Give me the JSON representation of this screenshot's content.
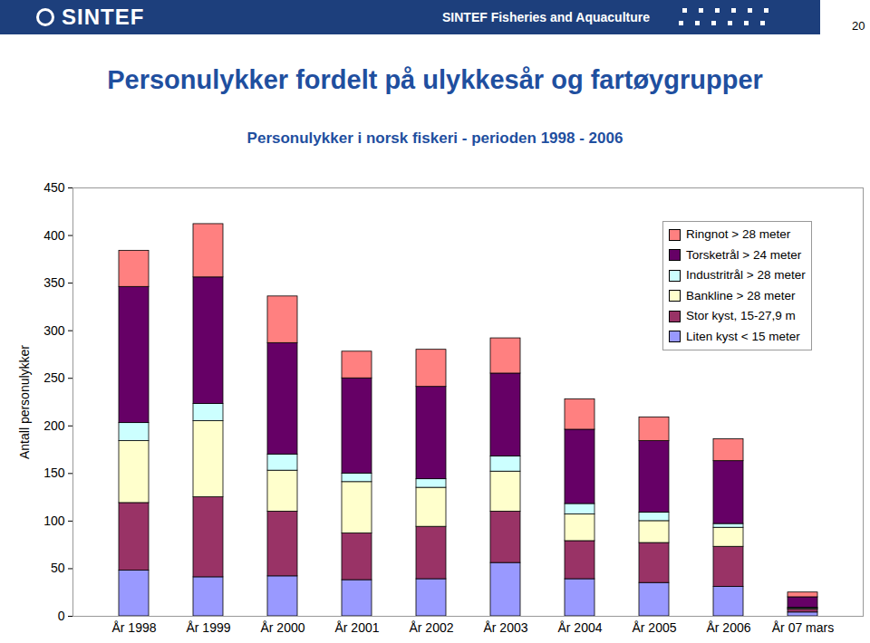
{
  "page": {
    "logo": "SINTEF",
    "department": "SINTEF Fisheries and Aquaculture",
    "page_number": "20"
  },
  "chart_data": {
    "type": "bar",
    "stacked": true,
    "title": "Personulykker fordelt på ulykkesår og fartøygrupper",
    "subtitle": "Personulykker i norsk fiskeri - perioden 1998 - 2006",
    "y_label": "Antall personulykker",
    "categories": [
      "År 1998",
      "År 1999",
      "År 2000",
      "År 2001",
      "År 2002",
      "År 2003",
      "År 2004",
      "År 2005",
      "År 2006",
      "År 07 mars"
    ],
    "series": [
      {
        "name": "Liten kyst < 15 meter",
        "color": "#9999ff",
        "values": [
          48,
          41,
          42,
          38,
          39,
          56,
          39,
          35,
          31,
          4
        ]
      },
      {
        "name": "Stor kyst, 15-27,9 m",
        "color": "#993366",
        "values": [
          71,
          84,
          68,
          49,
          55,
          54,
          40,
          42,
          42,
          3
        ]
      },
      {
        "name": "Bankline > 28 meter",
        "color": "#ffffcc",
        "values": [
          65,
          80,
          43,
          54,
          41,
          42,
          28,
          23,
          20,
          1
        ]
      },
      {
        "name": "Industritrål > 28 meter",
        "color": "#ccffff",
        "values": [
          19,
          18,
          17,
          9,
          9,
          16,
          11,
          9,
          4,
          1
        ]
      },
      {
        "name": "Torsketrål > 24 meter",
        "color": "#660066",
        "values": [
          143,
          133,
          117,
          100,
          97,
          87,
          78,
          75,
          66,
          11
        ]
      },
      {
        "name": "Ringnot > 28 meter",
        "color": "#ff8080",
        "values": [
          38,
          56,
          49,
          28,
          39,
          37,
          32,
          25,
          23,
          5
        ]
      }
    ],
    "ylim": [
      0,
      450
    ],
    "yticks": [
      0,
      50,
      100,
      150,
      200,
      250,
      300,
      350,
      400,
      450
    ],
    "grid": false,
    "legend": "upper right"
  }
}
